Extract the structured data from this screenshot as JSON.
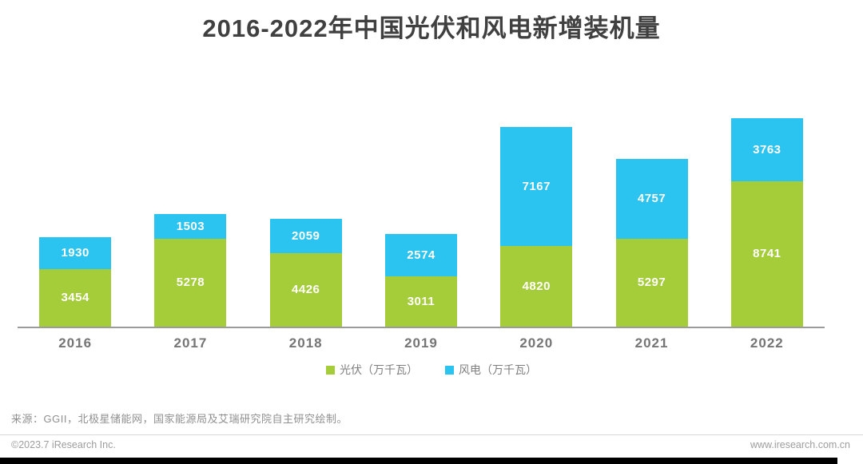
{
  "title": "2016-2022年中国光伏和风电新增装机量",
  "chart_data": {
    "type": "bar",
    "stacked": true,
    "title": "2016-2022年中国光伏和风电新增装机量",
    "categories": [
      "2016",
      "2017",
      "2018",
      "2019",
      "2020",
      "2021",
      "2022"
    ],
    "series": [
      {
        "name": "光伏（万千瓦）",
        "color": "#a5cd3a",
        "values": [
          3454,
          5278,
          4426,
          3011,
          4820,
          5297,
          8741
        ]
      },
      {
        "name": "风电（万千瓦）",
        "color": "#2bc3ef",
        "values": [
          1930,
          1503,
          2059,
          2574,
          7167,
          4757,
          3763
        ]
      }
    ],
    "xlabel": "",
    "ylabel": "",
    "ylim": [
      0,
      12700
    ],
    "grid": false,
    "legend_position": "bottom",
    "value_labels": true
  },
  "footer": {
    "source": "来源：GGII，北极星储能网，国家能源局及艾瑞研究院自主研究绘制。",
    "copyright": "©2023.7 iResearch Inc.",
    "website": "www.iresearch.com.cn"
  },
  "colors": {
    "pv_green": "#a5cd3a",
    "wind_blue": "#2bc3ef",
    "title_text": "#404040",
    "axis_line": "#9b9b9b"
  }
}
